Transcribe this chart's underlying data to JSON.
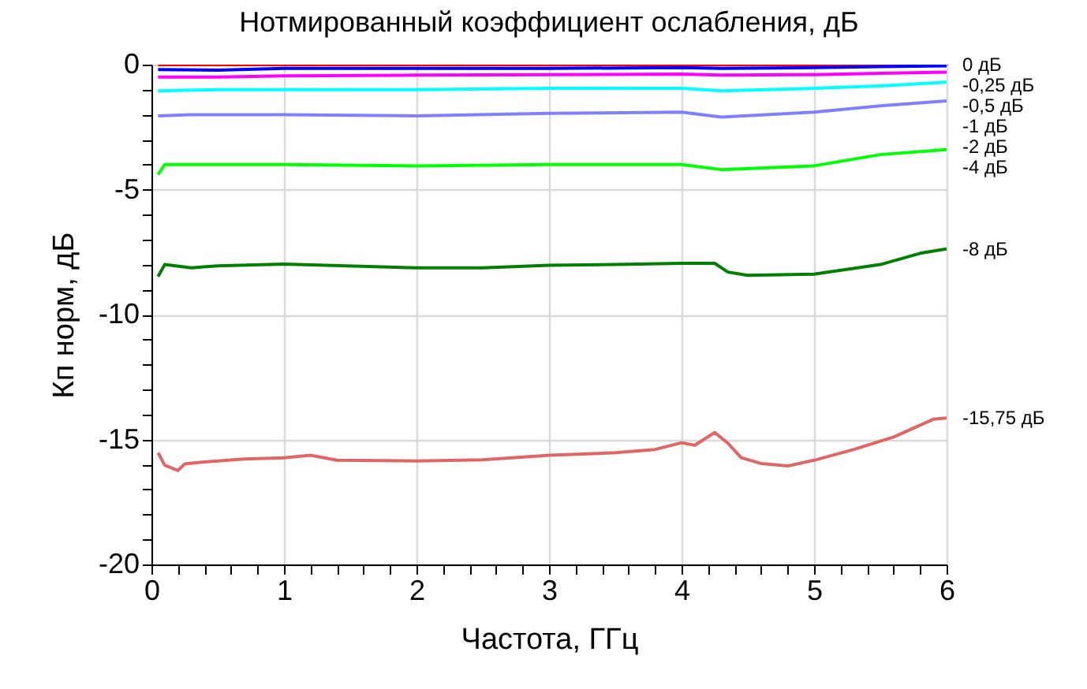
{
  "chart_data": {
    "type": "line",
    "title": "Нотмированный коэффициент ослабления, дБ",
    "xlabel": "Частота, ГГц",
    "ylabel": "Кп норм, дБ",
    "xlim": [
      0,
      6
    ],
    "ylim": [
      -20,
      0
    ],
    "xticks": [
      0,
      {
        "value": 0.2,
        "label": null
      },
      {
        "value": 0.4,
        "label": null
      },
      {
        "value": 0.6,
        "label": null
      },
      {
        "value": 0.8,
        "label": null
      },
      1,
      {
        "value": 1.2,
        "label": null
      },
      {
        "value": 1.4,
        "label": null
      },
      {
        "value": 1.6,
        "label": null
      },
      {
        "value": 1.8,
        "label": null
      },
      2,
      {
        "value": 2.2,
        "label": null
      },
      {
        "value": 2.4,
        "label": null
      },
      {
        "value": 2.6,
        "label": null
      },
      {
        "value": 2.8,
        "label": null
      },
      3,
      {
        "value": 3.2,
        "label": null
      },
      {
        "value": 3.4,
        "label": null
      },
      {
        "value": 3.6,
        "label": null
      },
      {
        "value": 3.8,
        "label": null
      },
      4,
      {
        "value": 4.2,
        "label": null
      },
      {
        "value": 4.4,
        "label": null
      },
      {
        "value": 4.6,
        "label": null
      },
      {
        "value": 4.8,
        "label": null
      },
      5,
      {
        "value": 5.2,
        "label": null
      },
      {
        "value": 5.4,
        "label": null
      },
      {
        "value": 5.6,
        "label": null
      },
      {
        "value": 5.8,
        "label": null
      },
      6
    ],
    "yticks": [
      0,
      {
        "value": -1,
        "label": null
      },
      {
        "value": -2,
        "label": null
      },
      {
        "value": -3,
        "label": null
      },
      {
        "value": -4,
        "label": null
      },
      -5,
      {
        "value": -6,
        "label": null
      },
      {
        "value": -7,
        "label": null
      },
      {
        "value": -8,
        "label": null
      },
      {
        "value": -9,
        "label": null
      },
      -10,
      {
        "value": -11,
        "label": null
      },
      {
        "value": -12,
        "label": null
      },
      {
        "value": -13,
        "label": null
      },
      {
        "value": -14,
        "label": null
      },
      -15,
      {
        "value": -16,
        "label": null
      },
      {
        "value": -17,
        "label": null
      },
      {
        "value": -18,
        "label": null
      },
      {
        "value": -19,
        "label": null
      },
      -20
    ],
    "grid": true,
    "marker": "none",
    "line_style": "solid",
    "series": [
      {
        "name": "0 дБ",
        "color": "#ff0000",
        "x": [
          0.05,
          6
        ],
        "values": [
          0,
          0
        ]
      },
      {
        "name": "-0,25 дБ",
        "color": "#0000ff",
        "x": [
          0.05,
          0.5,
          1,
          2,
          3,
          4,
          4.3,
          5,
          5.5,
          6
        ],
        "values": [
          -0.2,
          -0.22,
          -0.15,
          -0.15,
          -0.15,
          -0.12,
          -0.15,
          -0.12,
          -0.08,
          -0.05
        ]
      },
      {
        "name": "-0,5 дБ",
        "color": "#ff00ff",
        "x": [
          0.05,
          0.5,
          1,
          2,
          3,
          4,
          4.3,
          5,
          5.5,
          6
        ],
        "values": [
          -0.5,
          -0.5,
          -0.45,
          -0.42,
          -0.4,
          -0.38,
          -0.42,
          -0.4,
          -0.35,
          -0.3
        ]
      },
      {
        "name": "-1 дБ",
        "color": "#00ffff",
        "x": [
          0.05,
          0.5,
          1,
          2,
          3,
          4,
          4.3,
          5,
          5.5,
          6
        ],
        "values": [
          -1.05,
          -1.0,
          -1.0,
          -1.0,
          -0.95,
          -0.95,
          -1.05,
          -0.95,
          -0.85,
          -0.7
        ]
      },
      {
        "name": "-2 дБ",
        "color": "#8080ff",
        "x": [
          0.05,
          0.3,
          1,
          2,
          3,
          4,
          4.3,
          5,
          5.5,
          6
        ],
        "values": [
          -2.05,
          -2.0,
          -2.0,
          -2.05,
          -1.95,
          -1.9,
          -2.1,
          -1.9,
          -1.65,
          -1.45
        ]
      },
      {
        "name": "-4 дБ",
        "color": "#00ff00",
        "x": [
          0.05,
          0.1,
          0.5,
          1,
          2,
          3,
          4,
          4.3,
          5,
          5.5,
          6
        ],
        "values": [
          -4.4,
          -4.0,
          -4.0,
          -4.0,
          -4.05,
          -4.0,
          -4.0,
          -4.2,
          -4.05,
          -3.6,
          -3.4
        ]
      },
      {
        "name": "-8 дБ",
        "color": "#007f00",
        "x": [
          0.05,
          0.1,
          0.3,
          0.5,
          1,
          2,
          2.5,
          3,
          3.5,
          4,
          4.25,
          4.35,
          4.5,
          5,
          5.5,
          5.8,
          6
        ],
        "values": [
          -8.48,
          -8.0,
          -8.13,
          -8.05,
          -7.98,
          -8.13,
          -8.13,
          -8.03,
          -8.0,
          -7.95,
          -7.95,
          -8.3,
          -8.43,
          -8.38,
          -8.0,
          -7.55,
          -7.37
        ]
      },
      {
        "name": "-15,75 дБ",
        "color": "#e06666",
        "x": [
          0.05,
          0.1,
          0.2,
          0.25,
          0.4,
          0.7,
          1.0,
          1.2,
          1.4,
          2.0,
          2.5,
          3.0,
          3.5,
          3.8,
          4.0,
          4.1,
          4.25,
          4.35,
          4.45,
          4.6,
          4.8,
          5.0,
          5.3,
          5.6,
          5.9,
          6.0
        ],
        "values": [
          -15.53,
          -16.03,
          -16.24,
          -15.98,
          -15.9,
          -15.78,
          -15.73,
          -15.63,
          -15.83,
          -15.86,
          -15.81,
          -15.63,
          -15.53,
          -15.4,
          -15.13,
          -15.23,
          -14.72,
          -15.15,
          -15.73,
          -15.96,
          -16.06,
          -15.83,
          -15.4,
          -14.9,
          -14.19,
          -14.14
        ]
      }
    ]
  }
}
